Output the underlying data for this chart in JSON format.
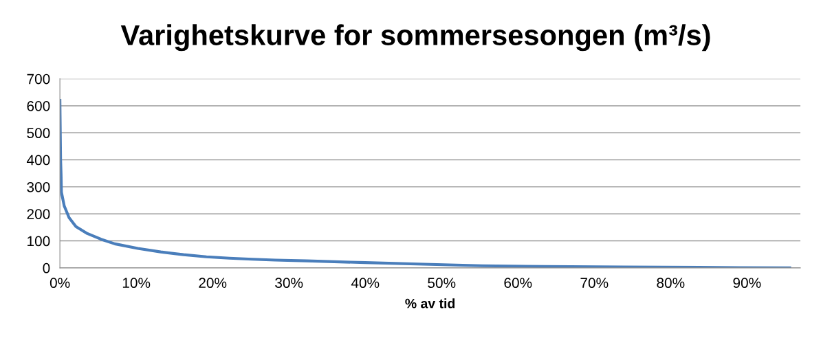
{
  "chart_data": {
    "type": "line",
    "title": "Varighetskurve for sommersesongen (m³/s)",
    "xlabel": "% av tid",
    "series": [
      {
        "color": "#4a7ebb",
        "x": [
          0,
          0.09,
          0.15,
          0.2,
          0.57,
          1.2,
          2.1,
          3.6,
          5.4,
          7.2,
          10.2,
          13.2,
          16.2,
          19.2,
          22.2,
          25.2,
          28.2,
          32.3,
          40,
          48.5,
          55.3,
          63.4,
          73.8,
          89,
          95.6
        ],
        "values": [
          620,
          400,
          348,
          280,
          229,
          186,
          153,
          127,
          106,
          89,
          72,
          59,
          49,
          41,
          36,
          32,
          29,
          26,
          19.5,
          13,
          8,
          5,
          3,
          1,
          0
        ]
      }
    ],
    "xlim": [
      0,
      97
    ],
    "xticks": [
      {
        "value": 0,
        "label": "0%"
      },
      {
        "value": 10,
        "label": "10%"
      },
      {
        "value": 20,
        "label": "20%"
      },
      {
        "value": 30,
        "label": "30%"
      },
      {
        "value": 40,
        "label": "40%"
      },
      {
        "value": 50,
        "label": "50%"
      },
      {
        "value": 60,
        "label": "60%"
      },
      {
        "value": 70,
        "label": "70%"
      },
      {
        "value": 80,
        "label": "80%"
      },
      {
        "value": 90,
        "label": "90%"
      }
    ],
    "ylim": [
      0,
      700
    ],
    "yticks": [
      0,
      100,
      200,
      300,
      400,
      500,
      600,
      700
    ],
    "grid": "y",
    "legend": false,
    "marker": "none",
    "line_style": "solid"
  }
}
